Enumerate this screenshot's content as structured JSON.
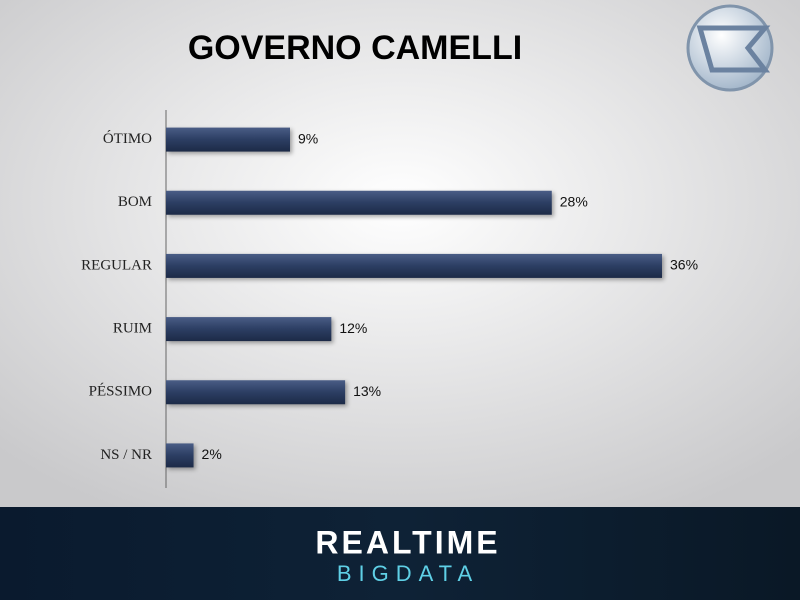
{
  "chart_data": {
    "type": "hbar",
    "title": "GOVERNO CAMELLI",
    "categories": [
      "ÓTIMO",
      "BOM",
      "REGULAR",
      "RUIM",
      "PÉSSIMO",
      "NS / NR"
    ],
    "values": [
      9,
      28,
      36,
      12,
      13,
      2
    ],
    "value_labels": [
      "9%",
      "28%",
      "36%",
      "12%",
      "13%",
      "2%"
    ],
    "color": "#2c3e63"
  },
  "footer": {
    "brand": "REALTIME",
    "sub": "BIGDATA"
  }
}
